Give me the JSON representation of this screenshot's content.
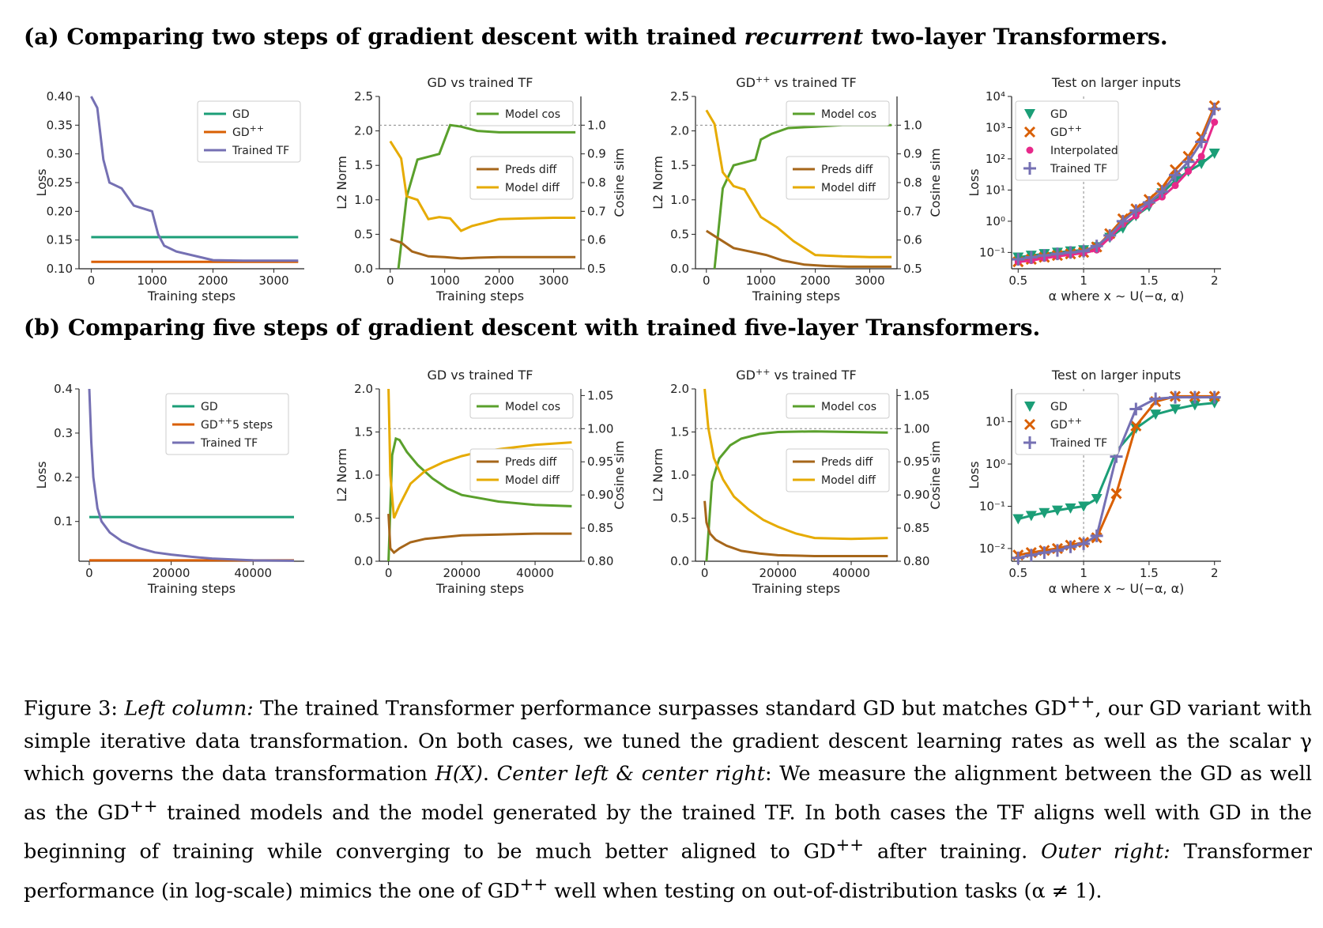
{
  "titles": {
    "a_pre": "(a) Comparing two steps of gradient descent with trained ",
    "a_em": "recurrent",
    "a_post": " two-layer Transformers.",
    "b": "(b) Comparing five steps of gradient descent with trained five-layer Transformers."
  },
  "caption": {
    "label": "Figure 3: ",
    "left_col": "Left column:",
    "t1": " The trained Transformer performance surpasses standard GD but matches GD",
    "t2": ", our GD variant with simple iterative data transformation. On both cases, we tuned the gradient descent learning rates as well as the scalar γ which governs the data transformation ",
    "hx": "H(X)",
    "t3": ". ",
    "center": "Center left & center right",
    "t4": ": We measure the alignment between the GD as well as the GD",
    "t5": " trained models and the model generated by the trained TF. In both cases the TF aligns well with GD in the beginning of training while converging to be much better aligned to GD",
    "t6": " after training. ",
    "outer": "Outer right:",
    "t7": " Transformer performance (in log-scale) mimics the one of GD",
    "t8": " well when testing on out-of-distribution tasks (α ≠ 1).",
    "sup": "++"
  },
  "colors": {
    "gd": "#1b9e77",
    "gdpp": "#d95f02",
    "tf": "#7570b3",
    "cos": "#5aa02c",
    "preds": "#a6661a",
    "model": "#e6ab02",
    "interp": "#e7298a"
  },
  "chart_data": [
    {
      "id": "a1",
      "type": "line",
      "xlabel": "Training steps",
      "ylabel": "Loss",
      "xlim": [
        -200,
        3500
      ],
      "ylim": [
        0.1,
        0.4
      ],
      "xticks": [
        0,
        1000,
        2000,
        3000
      ],
      "yticks": [
        0.1,
        0.15,
        0.2,
        0.25,
        0.3,
        0.35,
        0.4
      ],
      "legend": [
        "GD",
        "GD++",
        "Trained TF"
      ],
      "series": [
        {
          "name": "GD",
          "x": [
            0,
            3400
          ],
          "y": [
            0.155,
            0.155
          ]
        },
        {
          "name": "GD++",
          "x": [
            0,
            3400
          ],
          "y": [
            0.112,
            0.112
          ]
        },
        {
          "name": "Trained TF",
          "x": [
            0,
            100,
            200,
            300,
            500,
            700,
            1000,
            1100,
            1200,
            1400,
            2000,
            2500,
            3400
          ],
          "y": [
            0.4,
            0.38,
            0.29,
            0.25,
            0.24,
            0.21,
            0.2,
            0.16,
            0.14,
            0.13,
            0.115,
            0.114,
            0.114
          ]
        }
      ]
    },
    {
      "id": "a2",
      "type": "line",
      "title": "GD vs trained TF",
      "xlabel": "Training steps",
      "ylabel": "L2 Norm",
      "y2label": "Cosine sim",
      "xlim": [
        -200,
        3500
      ],
      "ylim": [
        0,
        2.5
      ],
      "y2lim": [
        0.5,
        1.1
      ],
      "xticks": [
        0,
        1000,
        2000,
        3000
      ],
      "yticks": [
        0.0,
        0.5,
        1.0,
        1.5,
        2.0,
        2.5
      ],
      "y2ticks": [
        0.5,
        0.6,
        0.7,
        0.8,
        0.9,
        1.0
      ],
      "legend": [
        "Model cos",
        "Preds diff",
        "Model diff"
      ],
      "series": [
        {
          "name": "Model cos",
          "axis": "y2",
          "x": [
            150,
            300,
            500,
            700,
            900,
            1100,
            1300,
            1600,
            2000,
            2500,
            3000,
            3400
          ],
          "y": [
            0.5,
            0.75,
            0.88,
            0.89,
            0.9,
            1.0,
            0.995,
            0.98,
            0.975,
            0.975,
            0.975,
            0.975
          ]
        },
        {
          "name": "Preds diff",
          "axis": "y",
          "x": [
            0,
            200,
            400,
            700,
            1000,
            1300,
            1600,
            2000,
            2500,
            3000,
            3400
          ],
          "y": [
            0.43,
            0.38,
            0.25,
            0.18,
            0.17,
            0.15,
            0.16,
            0.17,
            0.17,
            0.17,
            0.17
          ]
        },
        {
          "name": "Model diff",
          "axis": "y",
          "x": [
            0,
            200,
            300,
            500,
            700,
            900,
            1100,
            1300,
            1500,
            2000,
            2500,
            3000,
            3400
          ],
          "y": [
            1.85,
            1.6,
            1.05,
            1.0,
            0.72,
            0.75,
            0.73,
            0.55,
            0.62,
            0.72,
            0.73,
            0.74,
            0.74
          ]
        }
      ]
    },
    {
      "id": "a3",
      "type": "line",
      "title": "GD++ vs trained TF",
      "xlabel": "Training steps",
      "ylabel": "L2 Norm",
      "y2label": "Cosine sim",
      "xlim": [
        -200,
        3500
      ],
      "ylim": [
        0,
        2.5
      ],
      "y2lim": [
        0.5,
        1.1
      ],
      "xticks": [
        0,
        1000,
        2000,
        3000
      ],
      "yticks": [
        0.0,
        0.5,
        1.0,
        1.5,
        2.0,
        2.5
      ],
      "y2ticks": [
        0.5,
        0.6,
        0.7,
        0.8,
        0.9,
        1.0
      ],
      "legend": [
        "Model cos",
        "Preds diff",
        "Model diff"
      ],
      "series": [
        {
          "name": "Model cos",
          "axis": "y2",
          "x": [
            150,
            300,
            500,
            700,
            900,
            1000,
            1200,
            1500,
            2000,
            2500,
            3000,
            3400
          ],
          "y": [
            0.5,
            0.78,
            0.86,
            0.87,
            0.88,
            0.95,
            0.97,
            0.99,
            0.995,
            1.0,
            1.0,
            1.0
          ]
        },
        {
          "name": "Preds diff",
          "axis": "y",
          "x": [
            0,
            200,
            500,
            800,
            1100,
            1400,
            1800,
            2200,
            2600,
            3000,
            3400
          ],
          "y": [
            0.55,
            0.45,
            0.3,
            0.25,
            0.2,
            0.12,
            0.06,
            0.04,
            0.03,
            0.03,
            0.03
          ]
        },
        {
          "name": "Model diff",
          "axis": "y",
          "x": [
            0,
            150,
            300,
            500,
            700,
            1000,
            1300,
            1600,
            2000,
            2500,
            3000,
            3400
          ],
          "y": [
            2.3,
            2.1,
            1.4,
            1.2,
            1.15,
            0.75,
            0.6,
            0.4,
            0.2,
            0.18,
            0.17,
            0.17
          ]
        }
      ]
    },
    {
      "id": "a4",
      "type": "line",
      "title": "Test on larger inputs",
      "ylog": true,
      "xlabel": "α   where x ∼ U(−α, α)",
      "ylabel": "Loss",
      "xlim": [
        0.45,
        2.05
      ],
      "ylim": [
        0.03,
        10000
      ],
      "xticks": [
        0.5,
        1.0,
        1.5,
        2.0
      ],
      "yticks": [
        0.1,
        1,
        10,
        100,
        1000,
        10000
      ],
      "ytick_labels": [
        "10⁻¹",
        "10⁰",
        "10¹",
        "10²",
        "10³",
        "10⁴"
      ],
      "legend": [
        "GD",
        "GD++",
        "Interpolated",
        "Trained TF"
      ],
      "x": [
        0.5,
        0.6,
        0.7,
        0.8,
        0.9,
        1.0,
        1.1,
        1.2,
        1.3,
        1.4,
        1.5,
        1.6,
        1.7,
        1.8,
        1.9,
        2.0
      ],
      "series": [
        {
          "name": "GD",
          "y": [
            0.07,
            0.08,
            0.09,
            0.1,
            0.11,
            0.12,
            0.15,
            0.3,
            0.6,
            1.5,
            3,
            8,
            20,
            40,
            70,
            150
          ]
        },
        {
          "name": "GD++",
          "y": [
            0.05,
            0.06,
            0.07,
            0.08,
            0.09,
            0.1,
            0.15,
            0.4,
            1.2,
            2.5,
            5,
            12,
            45,
            120,
            500,
            5000
          ]
        },
        {
          "name": "Interpolated",
          "y": [
            0.05,
            0.055,
            0.065,
            0.075,
            0.085,
            0.095,
            0.12,
            0.3,
            0.8,
            1.5,
            3.5,
            6,
            14,
            40,
            120,
            1500
          ]
        },
        {
          "name": "Trained TF",
          "y": [
            0.06,
            0.07,
            0.08,
            0.09,
            0.1,
            0.11,
            0.16,
            0.35,
            1,
            2.2,
            4,
            9,
            30,
            80,
            350,
            4000
          ]
        }
      ]
    },
    {
      "id": "b1",
      "type": "line",
      "xlabel": "Training steps",
      "ylabel": "Loss",
      "xlim": [
        -2500,
        52500
      ],
      "ylim": [
        0.01,
        0.4
      ],
      "xticks": [
        0,
        20000,
        40000
      ],
      "yticks": [
        0.1,
        0.2,
        0.3,
        0.4
      ],
      "legend": [
        "GD",
        "GD++5 steps",
        "Trained TF"
      ],
      "series": [
        {
          "name": "GD",
          "x": [
            0,
            50000
          ],
          "y": [
            0.11,
            0.11
          ]
        },
        {
          "name": "GD++5 steps",
          "x": [
            0,
            50000
          ],
          "y": [
            0.012,
            0.012
          ]
        },
        {
          "name": "Trained TF",
          "x": [
            0,
            500,
            1000,
            2000,
            3000,
            5000,
            8000,
            12000,
            16000,
            20000,
            25000,
            30000,
            40000,
            50000
          ],
          "y": [
            0.4,
            0.28,
            0.2,
            0.13,
            0.1,
            0.075,
            0.055,
            0.04,
            0.03,
            0.025,
            0.02,
            0.016,
            0.012,
            0.011
          ]
        }
      ]
    },
    {
      "id": "b2",
      "type": "line",
      "title": "GD vs trained TF",
      "xlabel": "Training steps",
      "ylabel": "L2 Norm",
      "y2label": "Cosine sim",
      "xlim": [
        -2500,
        52500
      ],
      "ylim": [
        0,
        2.0
      ],
      "y2lim": [
        0.8,
        1.06
      ],
      "xticks": [
        0,
        20000,
        40000
      ],
      "yticks": [
        0.0,
        0.5,
        1.0,
        1.5,
        2.0
      ],
      "y2ticks": [
        0.8,
        0.85,
        0.9,
        0.95,
        1.0,
        1.05
      ],
      "legend": [
        "Model cos",
        "Preds diff",
        "Model diff"
      ],
      "series": [
        {
          "name": "Model cos",
          "axis": "y2",
          "x": [
            0,
            1000,
            2000,
            3000,
            5000,
            8000,
            12000,
            16000,
            20000,
            25000,
            30000,
            40000,
            50000
          ],
          "y": [
            0.8,
            0.96,
            0.985,
            0.983,
            0.965,
            0.945,
            0.925,
            0.91,
            0.9,
            0.895,
            0.89,
            0.885,
            0.883
          ]
        },
        {
          "name": "Preds diff",
          "axis": "y",
          "x": [
            0,
            500,
            1500,
            3000,
            6000,
            10000,
            15000,
            20000,
            30000,
            40000,
            50000
          ],
          "y": [
            0.55,
            0.15,
            0.1,
            0.15,
            0.22,
            0.26,
            0.28,
            0.3,
            0.31,
            0.32,
            0.32
          ]
        },
        {
          "name": "Model diff",
          "axis": "y",
          "x": [
            0,
            500,
            1500,
            3000,
            6000,
            10000,
            15000,
            20000,
            25000,
            30000,
            40000,
            50000
          ],
          "y": [
            2.0,
            1.0,
            0.5,
            0.65,
            0.9,
            1.05,
            1.15,
            1.22,
            1.27,
            1.3,
            1.35,
            1.38
          ]
        }
      ]
    },
    {
      "id": "b3",
      "type": "line",
      "title": "GD++ vs trained TF",
      "xlabel": "Training steps",
      "ylabel": "L2 Norm",
      "y2label": "Cosine sim",
      "xlim": [
        -2500,
        52500
      ],
      "ylim": [
        0,
        2.0
      ],
      "y2lim": [
        0.8,
        1.06
      ],
      "xticks": [
        0,
        20000,
        40000
      ],
      "yticks": [
        0.0,
        0.5,
        1.0,
        1.5,
        2.0
      ],
      "y2ticks": [
        0.8,
        0.85,
        0.9,
        0.95,
        1.0,
        1.05
      ],
      "legend": [
        "Model cos",
        "Preds diff",
        "Model diff"
      ],
      "series": [
        {
          "name": "Model cos",
          "axis": "y2",
          "x": [
            500,
            2000,
            4000,
            7000,
            10000,
            15000,
            20000,
            30000,
            40000,
            50000
          ],
          "y": [
            0.8,
            0.92,
            0.955,
            0.975,
            0.985,
            0.992,
            0.995,
            0.996,
            0.995,
            0.994
          ]
        },
        {
          "name": "Preds diff",
          "axis": "y",
          "x": [
            0,
            500,
            1500,
            3000,
            6000,
            10000,
            15000,
            20000,
            30000,
            40000,
            50000
          ],
          "y": [
            0.7,
            0.45,
            0.32,
            0.25,
            0.18,
            0.12,
            0.09,
            0.07,
            0.06,
            0.06,
            0.06
          ]
        },
        {
          "name": "Model diff",
          "axis": "y",
          "x": [
            0,
            1000,
            2500,
            5000,
            8000,
            12000,
            16000,
            20000,
            25000,
            30000,
            40000,
            50000
          ],
          "y": [
            2.0,
            1.55,
            1.2,
            0.95,
            0.75,
            0.6,
            0.48,
            0.4,
            0.32,
            0.27,
            0.26,
            0.27
          ]
        }
      ]
    },
    {
      "id": "b4",
      "type": "line",
      "title": "Test on larger inputs",
      "ylog": true,
      "xlabel": "α   where x ∼ U(−α, α)",
      "ylabel": "Loss",
      "xlim": [
        0.45,
        2.05
      ],
      "ylim": [
        0.005,
        60
      ],
      "xticks": [
        0.5,
        1.0,
        1.5,
        2.0
      ],
      "yticks": [
        0.01,
        0.1,
        1,
        10
      ],
      "ytick_labels": [
        "10⁻²",
        "10⁻¹",
        "10⁰",
        "10¹"
      ],
      "legend": [
        "GD",
        "GD++",
        "Trained TF"
      ],
      "x": [
        0.5,
        0.6,
        0.7,
        0.8,
        0.9,
        1.0,
        1.1,
        1.25,
        1.4,
        1.55,
        1.7,
        1.85,
        2.0
      ],
      "series": [
        {
          "name": "GD",
          "y": [
            0.05,
            0.06,
            0.07,
            0.08,
            0.09,
            0.1,
            0.15,
            2,
            7,
            15,
            20,
            25,
            28
          ]
        },
        {
          "name": "GD++",
          "y": [
            0.007,
            0.008,
            0.009,
            0.01,
            0.012,
            0.014,
            0.018,
            0.2,
            8,
            30,
            40,
            40,
            40
          ]
        },
        {
          "name": "Trained TF",
          "y": [
            0.006,
            0.007,
            0.008,
            0.009,
            0.011,
            0.013,
            0.02,
            1.5,
            20,
            35,
            38,
            38,
            38
          ]
        }
      ]
    }
  ]
}
